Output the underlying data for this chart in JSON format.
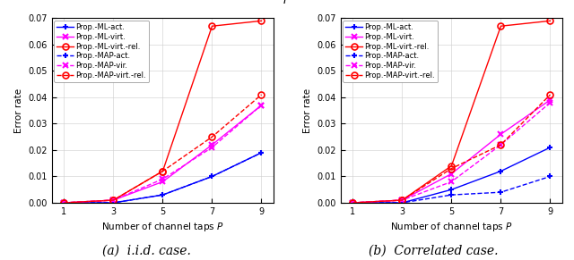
{
  "x": [
    1,
    3,
    5,
    7,
    9
  ],
  "iid": {
    "ML_act": [
      0.0,
      0.0,
      0.003,
      0.01,
      0.019
    ],
    "ML_virt": [
      0.0,
      0.001,
      0.008,
      0.022,
      0.037
    ],
    "ML_virt_rel": [
      0.0,
      0.001,
      0.012,
      0.067,
      0.069
    ],
    "MAP_act": [
      0.0,
      0.0,
      0.003,
      0.01,
      0.019
    ],
    "MAP_vir": [
      0.0,
      0.001,
      0.009,
      0.021,
      0.037
    ],
    "MAP_virt_rel": [
      0.0,
      0.001,
      0.012,
      0.025,
      0.041
    ]
  },
  "corr": {
    "ML_act": [
      0.0,
      0.0,
      0.005,
      0.012,
      0.021
    ],
    "ML_virt": [
      0.0,
      0.001,
      0.011,
      0.026,
      0.039
    ],
    "ML_virt_rel": [
      0.0,
      0.001,
      0.014,
      0.067,
      0.069
    ],
    "MAP_act": [
      0.0,
      0.0,
      0.003,
      0.004,
      0.01
    ],
    "MAP_vir": [
      0.0,
      0.001,
      0.008,
      0.022,
      0.038
    ],
    "MAP_virt_rel": [
      0.0,
      0.001,
      0.013,
      0.022,
      0.041
    ]
  },
  "colors": {
    "blue": "#0000ff",
    "magenta": "#ff00ff",
    "red": "#ff0000"
  },
  "legend_labels": [
    "Prop.-ML-act.",
    "Prop.-ML-virt.",
    "Prop.-ML-virt.-rel.",
    "Prop.-MAP-act.",
    "Prop.-MAP-vir.",
    "Prop.-MAP-virt.-rel."
  ],
  "xlabel": "Number of channel taps $P$",
  "ylabel": "Error rate",
  "ylim": [
    0,
    0.07
  ],
  "yticks": [
    0.0,
    0.01,
    0.02,
    0.03,
    0.04,
    0.05,
    0.06,
    0.07
  ],
  "xticks": [
    1,
    3,
    5,
    7,
    9
  ],
  "subplot_labels": [
    "(a)  i.i.d. case.",
    "(b)  Correlated case."
  ],
  "suptitle": "$P$",
  "figsize": [
    6.4,
    2.91
  ],
  "dpi": 100
}
